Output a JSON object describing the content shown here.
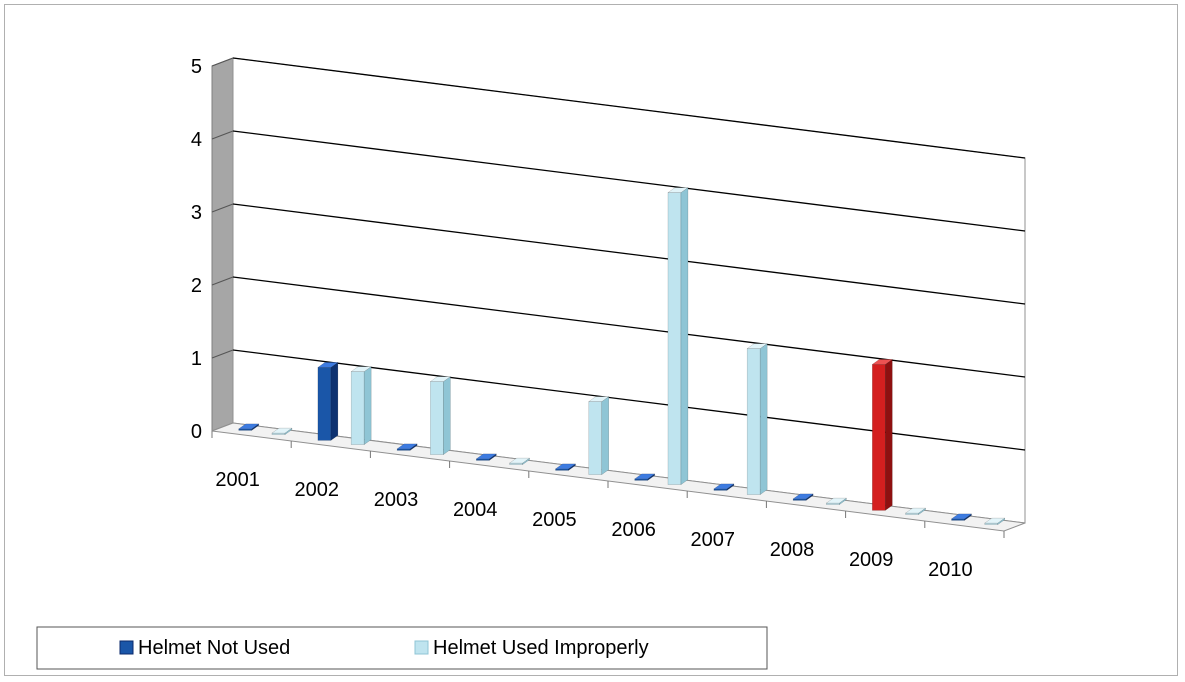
{
  "colors": {
    "not_used": "#1a56a8",
    "not_used_side": "#0e3270",
    "not_used_top": "#3d7be0",
    "used_improperly": "#bfe4ef",
    "used_improperly_side": "#8fc5d5",
    "used_improperly_top": "#e2f4f9",
    "highlight_bar": "#d41f1f",
    "wall": "#a6a6a6",
    "gridline": "#000000"
  },
  "legend": {
    "items": [
      {
        "label": "Helmet Not Used",
        "color": "#1a56a8"
      },
      {
        "label": "Helmet Used Improperly",
        "color": "#bfe4ef"
      }
    ],
    "placement": "bottom-left"
  },
  "chart_data": {
    "type": "bar",
    "variant": "3d-clustered",
    "categories": [
      "2001",
      "2002",
      "2003",
      "2004",
      "2005",
      "2006",
      "2007",
      "2008",
      "2009",
      "2010"
    ],
    "series": [
      {
        "name": "Helmet Not Used",
        "values": [
          0,
          1,
          0,
          0,
          0,
          0,
          0,
          0,
          2,
          0
        ]
      },
      {
        "name": "Helmet Used Improperly",
        "values": [
          0,
          1,
          1,
          0,
          1,
          4,
          2,
          0,
          0,
          0
        ]
      }
    ],
    "highlighted_point": {
      "category": "2009",
      "series": "Helmet Not Used",
      "color": "#d41f1f"
    },
    "ylim": [
      0,
      5
    ],
    "yticks": [
      "0",
      "1",
      "2",
      "3",
      "4",
      "5"
    ],
    "grid": true
  }
}
